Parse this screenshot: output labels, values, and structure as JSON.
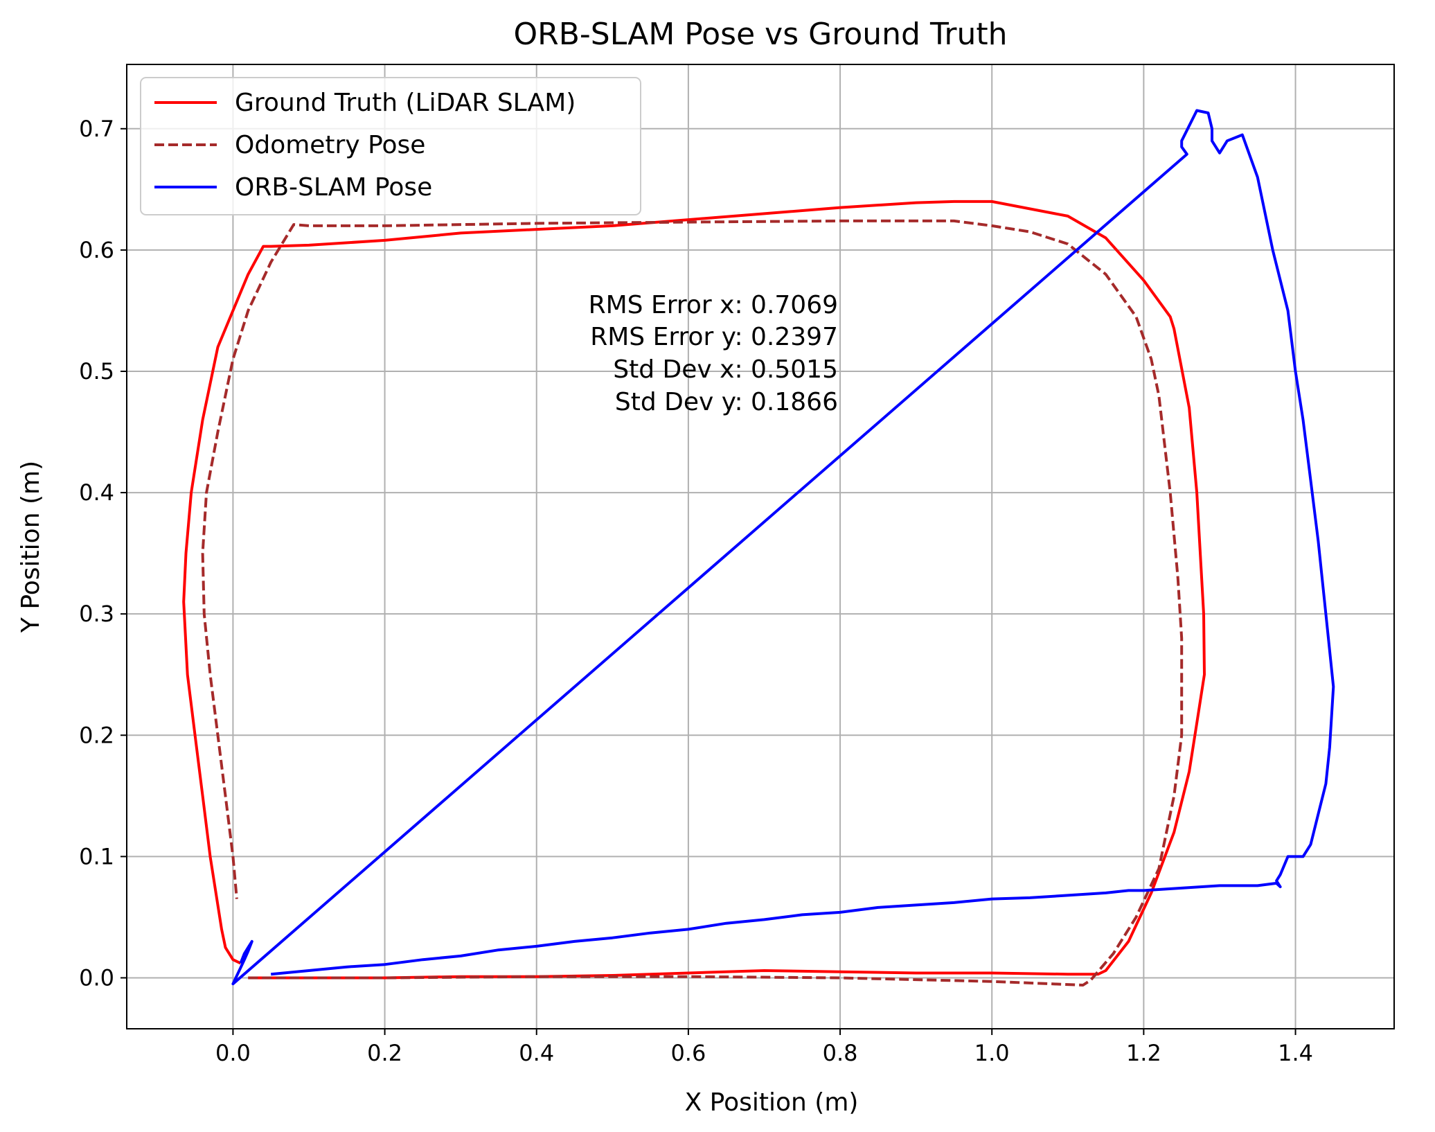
{
  "chart_data": {
    "type": "line",
    "title": "ORB-SLAM Pose vs Ground Truth",
    "xlabel": "X Position (m)",
    "ylabel": "Y Position (m)",
    "xlim": [
      -0.14,
      1.53
    ],
    "ylim": [
      -0.042,
      0.753
    ],
    "xticks": [
      0.0,
      0.2,
      0.4,
      0.6,
      0.8,
      1.0,
      1.2,
      1.4
    ],
    "xtick_labels": [
      "0.0",
      "0.2",
      "0.4",
      "0.6",
      "0.8",
      "1.0",
      "1.2",
      "1.4"
    ],
    "yticks": [
      0.0,
      0.1,
      0.2,
      0.3,
      0.4,
      0.5,
      0.6,
      0.7
    ],
    "ytick_labels": [
      "0.0",
      "0.1",
      "0.2",
      "0.3",
      "0.4",
      "0.5",
      "0.6",
      "0.7"
    ],
    "grid": true,
    "legend_position": "top-left",
    "annotation": [
      "RMS Error x: 0.7069",
      "RMS Error y: 0.2397",
      "Std Dev x: 0.5015",
      "Std Dev y: 0.1866"
    ],
    "series": [
      {
        "name": "Ground Truth (LiDAR SLAM)",
        "color": "#ff0000",
        "style": "solid",
        "x": [
          0.02,
          0.1,
          0.2,
          0.3,
          0.4,
          0.5,
          0.6,
          0.7,
          0.8,
          0.9,
          1.0,
          1.1,
          1.14,
          1.15,
          1.18,
          1.21,
          1.24,
          1.26,
          1.27,
          1.28,
          1.279,
          1.27,
          1.26,
          1.24,
          1.235,
          1.2,
          1.15,
          1.1,
          1.0,
          0.95,
          0.9,
          0.8,
          0.7,
          0.6,
          0.5,
          0.4,
          0.3,
          0.2,
          0.1,
          0.05,
          0.04,
          0.02,
          0.0,
          -0.02,
          -0.04,
          -0.055,
          -0.062,
          -0.065,
          -0.06,
          -0.05,
          -0.04,
          -0.03,
          -0.02,
          -0.015,
          -0.01,
          0.0,
          0.01
        ],
        "y": [
          0.0,
          0.0,
          0.0,
          0.001,
          0.001,
          0.002,
          0.004,
          0.006,
          0.005,
          0.004,
          0.004,
          0.003,
          0.003,
          0.006,
          0.03,
          0.07,
          0.12,
          0.17,
          0.21,
          0.25,
          0.3,
          0.4,
          0.47,
          0.535,
          0.545,
          0.575,
          0.61,
          0.628,
          0.64,
          0.64,
          0.639,
          0.635,
          0.63,
          0.625,
          0.62,
          0.617,
          0.614,
          0.608,
          0.604,
          0.603,
          0.603,
          0.58,
          0.55,
          0.52,
          0.46,
          0.4,
          0.35,
          0.31,
          0.25,
          0.2,
          0.15,
          0.1,
          0.06,
          0.04,
          0.025,
          0.015,
          0.012
        ]
      },
      {
        "name": "Odometry Pose",
        "color": "#a52a2a",
        "style": "dashed",
        "x": [
          0.02,
          0.2,
          0.4,
          0.6,
          0.8,
          1.0,
          1.12,
          1.13,
          1.16,
          1.19,
          1.22,
          1.24,
          1.25,
          1.25,
          1.245,
          1.235,
          1.22,
          1.21,
          1.19,
          1.15,
          1.1,
          1.05,
          1.0,
          0.95,
          0.9,
          0.8,
          0.6,
          0.4,
          0.2,
          0.1,
          0.08,
          0.05,
          0.02,
          0.0,
          -0.02,
          -0.035,
          -0.04,
          -0.038,
          -0.03,
          -0.02,
          -0.01,
          0.0,
          0.005
        ],
        "y": [
          0.0,
          0.0,
          0.001,
          0.001,
          0.0,
          -0.003,
          -0.006,
          -0.002,
          0.02,
          0.05,
          0.09,
          0.15,
          0.2,
          0.28,
          0.33,
          0.4,
          0.48,
          0.51,
          0.545,
          0.58,
          0.605,
          0.615,
          0.62,
          0.624,
          0.624,
          0.624,
          0.623,
          0.622,
          0.62,
          0.62,
          0.621,
          0.59,
          0.55,
          0.51,
          0.45,
          0.4,
          0.35,
          0.3,
          0.25,
          0.2,
          0.15,
          0.1,
          0.065
        ]
      },
      {
        "name": "ORB-SLAM Pose",
        "color": "#0000ff",
        "style": "solid",
        "x": [
          0.01,
          0.015,
          0.02,
          0.025,
          0.02,
          0.015,
          0.0,
          0.0,
          1.257,
          1.25,
          1.25,
          1.27,
          1.285,
          1.29,
          1.29,
          1.3,
          1.31,
          1.33,
          1.35,
          1.37,
          1.39,
          1.4,
          1.41,
          1.42,
          1.43,
          1.44,
          1.45,
          1.445,
          1.44,
          1.43,
          1.42,
          1.41,
          1.39,
          1.38,
          1.375,
          1.38,
          1.375,
          1.375,
          1.35,
          1.3,
          1.25,
          1.2,
          1.18,
          1.15,
          1.1,
          1.05,
          1.0,
          0.95,
          0.9,
          0.85,
          0.8,
          0.75,
          0.7,
          0.65,
          0.6,
          0.55,
          0.5,
          0.45,
          0.4,
          0.35,
          0.3,
          0.25,
          0.2,
          0.15,
          0.1,
          0.05
        ],
        "y": [
          0.012,
          0.02,
          0.025,
          0.03,
          0.022,
          0.015,
          -0.005,
          -0.005,
          0.679,
          0.685,
          0.69,
          0.715,
          0.713,
          0.7,
          0.69,
          0.68,
          0.69,
          0.695,
          0.66,
          0.6,
          0.55,
          0.5,
          0.46,
          0.41,
          0.36,
          0.3,
          0.24,
          0.19,
          0.16,
          0.135,
          0.11,
          0.1,
          0.1,
          0.085,
          0.08,
          0.075,
          0.078,
          0.078,
          0.076,
          0.076,
          0.074,
          0.072,
          0.072,
          0.07,
          0.068,
          0.066,
          0.065,
          0.062,
          0.06,
          0.058,
          0.054,
          0.052,
          0.048,
          0.045,
          0.04,
          0.037,
          0.033,
          0.03,
          0.026,
          0.023,
          0.018,
          0.015,
          0.011,
          0.009,
          0.006,
          0.003
        ]
      }
    ]
  }
}
